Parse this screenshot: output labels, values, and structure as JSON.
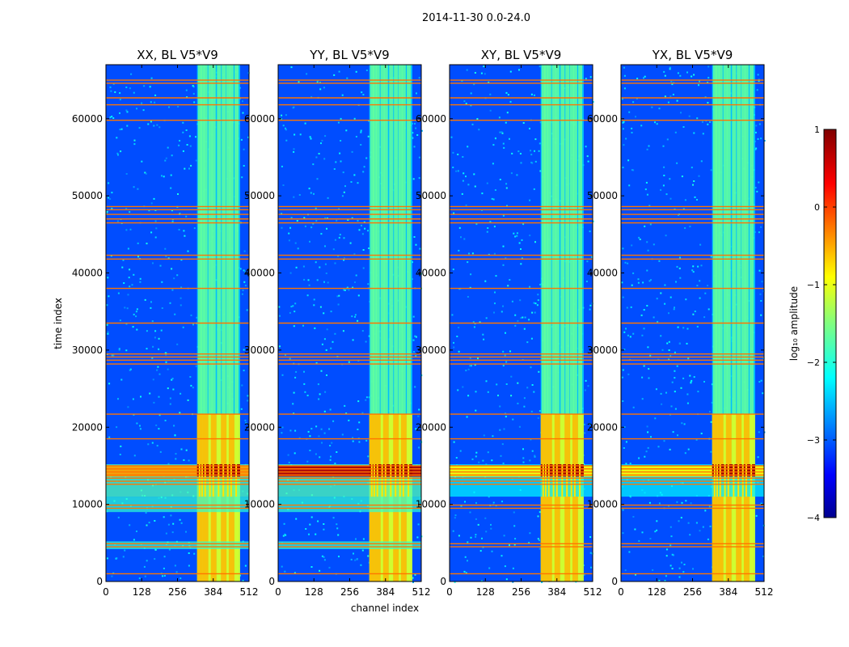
{
  "chart_data": {
    "type": "heatmap",
    "suptitle": "2014-11-30 0.0-24.0",
    "xlabel": "channel index",
    "ylabel": "time index",
    "xlim": [
      0,
      512
    ],
    "ylim": [
      0,
      67000
    ],
    "xticks": [
      0,
      128,
      256,
      384,
      512
    ],
    "yticks": [
      0,
      10000,
      20000,
      30000,
      40000,
      50000,
      60000
    ],
    "panels": [
      {
        "title": "XX, BL V5*V9",
        "strong_low_band": true,
        "low_band_intensity": 0.72
      },
      {
        "title": "YY, BL V5*V9",
        "strong_low_band": true,
        "low_band_intensity": 0.95
      },
      {
        "title": "XY, BL V5*V9",
        "strong_low_band": false,
        "low_band_intensity": 0.62
      },
      {
        "title": "YX, BL V5*V9",
        "strong_low_band": false,
        "low_band_intensity": 0.62
      }
    ],
    "rfi_channel_range": [
      326,
      480
    ],
    "rfi_columns": [
      335,
      344,
      355,
      372,
      384,
      403,
      420,
      436,
      448,
      466
    ],
    "flagged_time_rows": [
      1000,
      4500,
      4900,
      9500,
      9900,
      12600,
      13000,
      13400,
      13800,
      14200,
      14600,
      15000,
      18500,
      21700,
      28200,
      28700,
      29100,
      29500,
      33500,
      38000,
      41800,
      42300,
      46500,
      47000,
      47600,
      48200,
      48600,
      59800,
      61800,
      62700,
      64600,
      65000
    ],
    "colorbar": {
      "label": "log₁₀ amplitude",
      "range": [
        -4,
        1
      ],
      "ticks": [
        1,
        0,
        -1,
        -2,
        -3,
        -4
      ],
      "tick_labels": [
        "1",
        "0",
        "−1",
        "−2",
        "−3",
        "−4"
      ],
      "colormap": "jet"
    }
  }
}
